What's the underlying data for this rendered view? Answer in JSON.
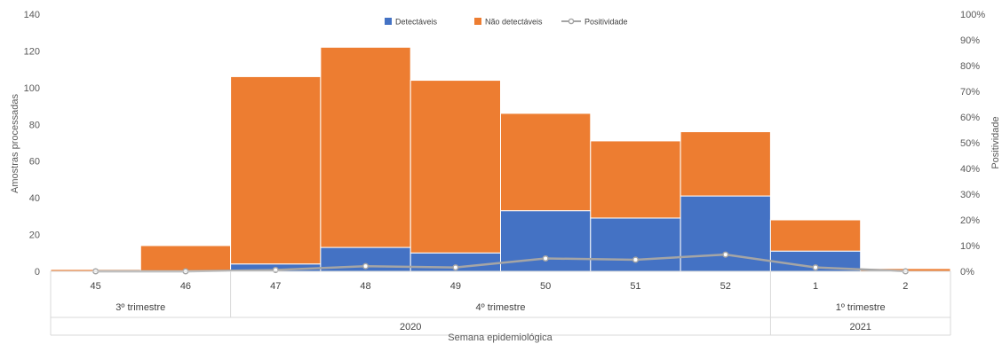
{
  "chart_data": {
    "type": "bar",
    "stacked": true,
    "categories": [
      "45",
      "46",
      "47",
      "48",
      "49",
      "50",
      "51",
      "52",
      "1",
      "2"
    ],
    "groups": [
      {
        "label": "3º trimestre",
        "from": 0,
        "to": 1
      },
      {
        "label": "4º trimestre",
        "from": 2,
        "to": 7
      },
      {
        "label": "1º trimestre",
        "from": 8,
        "to": 9
      }
    ],
    "years": [
      {
        "label": "2020",
        "from": 0,
        "to": 7
      },
      {
        "label": "2021",
        "from": 8,
        "to": 9
      }
    ],
    "series": [
      {
        "name": "Detectáveis",
        "type": "bar",
        "axis": "left",
        "color": "#4472C4",
        "values": [
          0,
          0,
          4,
          13,
          10,
          33,
          29,
          41,
          11,
          0
        ]
      },
      {
        "name": "Não detectáveis",
        "type": "bar",
        "axis": "left",
        "color": "#ED7D31",
        "values": [
          1,
          14,
          102,
          109,
          94,
          53,
          42,
          35,
          17,
          1.5
        ]
      },
      {
        "name": "Positividade",
        "type": "line",
        "axis": "right",
        "color": "#A5A5A5",
        "values": [
          0,
          0,
          0.5,
          2,
          1.5,
          5,
          4.5,
          6.5,
          1.5,
          0
        ]
      }
    ],
    "xlabel": "Semana epidemiológica",
    "ylabel": "Amostras processadas",
    "y2label": "Positividade",
    "ylim": [
      0,
      140
    ],
    "yticks": [
      "0",
      "20",
      "40",
      "60",
      "80",
      "100",
      "120",
      "140"
    ],
    "y2lim": [
      0,
      100
    ],
    "y2ticks": [
      "0%",
      "10%",
      "20%",
      "30%",
      "40%",
      "50%",
      "60%",
      "70%",
      "80%",
      "90%",
      "100%"
    ],
    "legend_position": "top",
    "grid": false
  }
}
